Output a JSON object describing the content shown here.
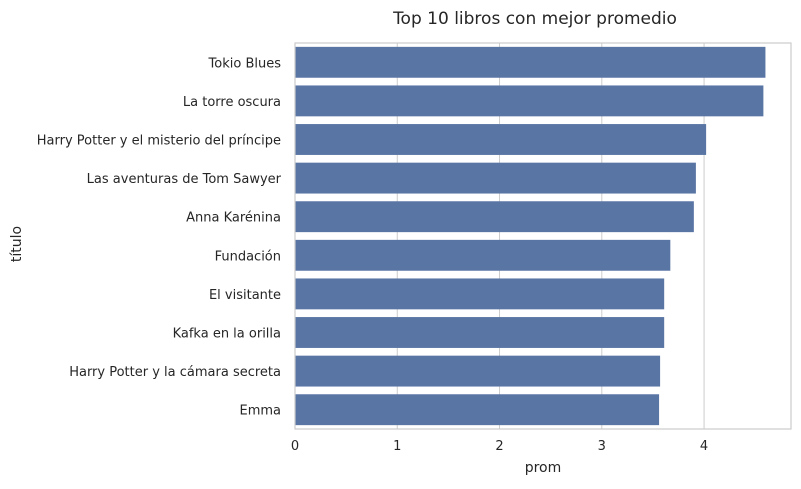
{
  "chart_data": {
    "type": "bar",
    "orientation": "horizontal",
    "title": "Top 10 libros con mejor promedio",
    "xlabel": "prom",
    "ylabel": "título",
    "categories": [
      "Tokio Blues",
      "La torre oscura",
      "Harry Potter y el misterio del príncipe",
      "Las aventuras de Tom Sawyer",
      "Anna Karénina",
      "Fundación",
      "El visitante",
      "Kafka en la orilla",
      "Harry Potter y la cámara secreta",
      "Emma"
    ],
    "values": [
      4.6,
      4.58,
      4.02,
      3.92,
      3.9,
      3.67,
      3.61,
      3.61,
      3.57,
      3.56
    ],
    "xlim": [
      0,
      4.85
    ],
    "xticks": [
      0,
      1,
      2,
      3,
      4
    ],
    "grid": true,
    "bar_color": "#5875a4",
    "grid_color": "#cccccc",
    "spine_color": "#cccccc"
  }
}
